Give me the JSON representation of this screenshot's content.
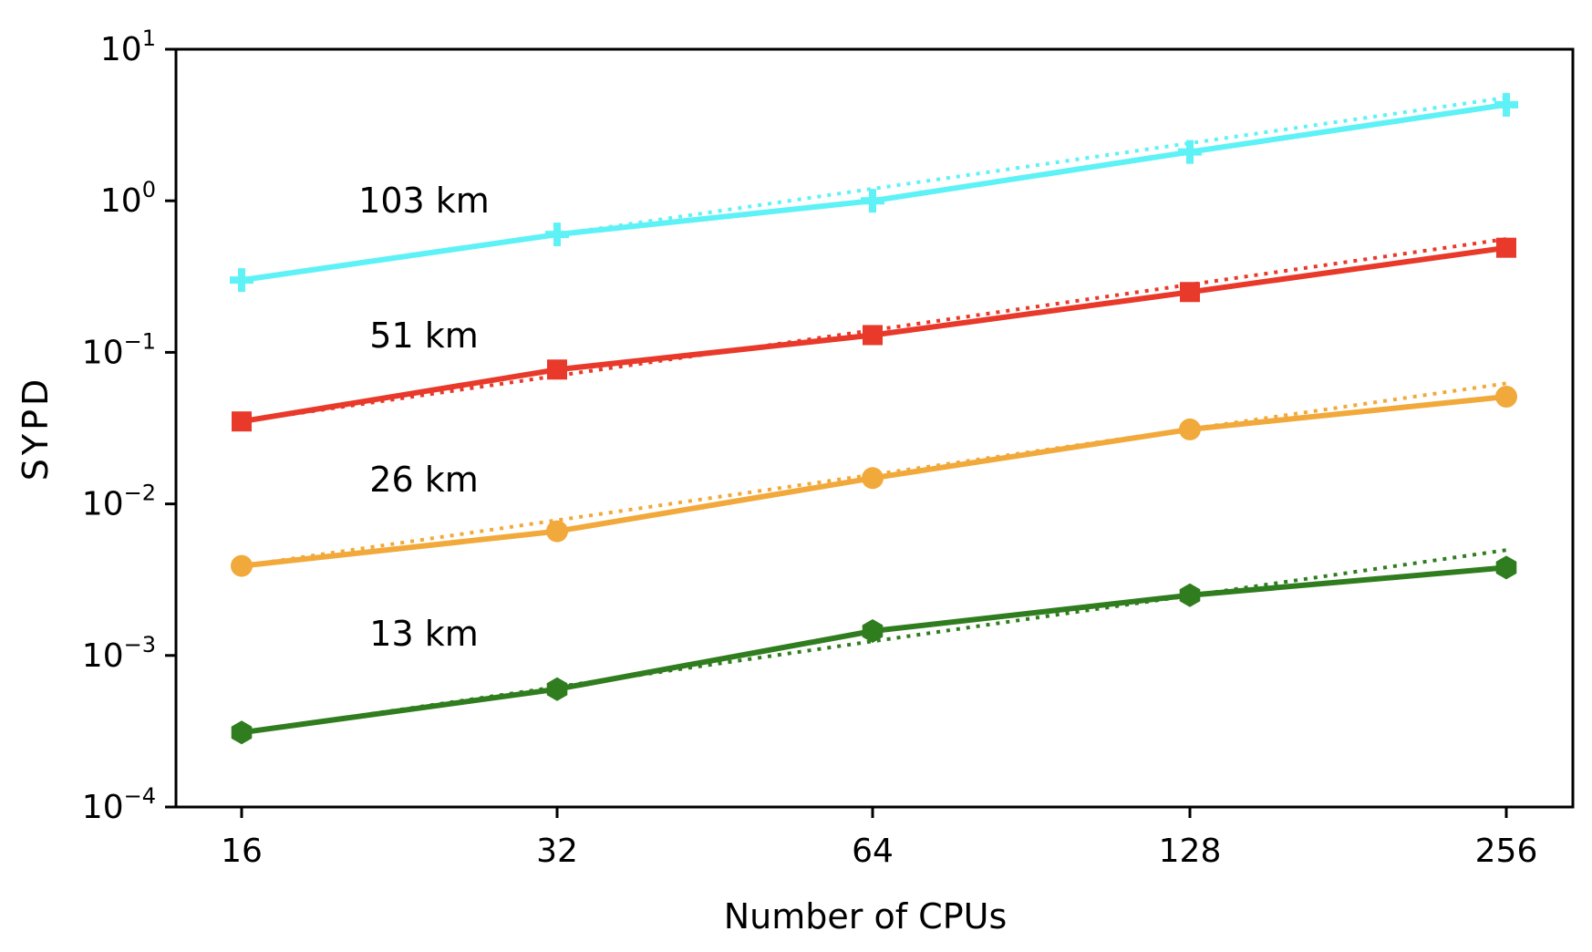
{
  "chart_data": {
    "type": "line",
    "xlabel": "Number of CPUs",
    "ylabel": "SYPD",
    "xscale": "log2",
    "yscale": "log10",
    "x": [
      16,
      32,
      64,
      128,
      256
    ],
    "x_tick_labels": [
      "16",
      "32",
      "64",
      "128",
      "256"
    ],
    "ylim": [
      0.0001,
      10
    ],
    "y_ticks": [
      {
        "base": "10",
        "exp": "1",
        "value": 10
      },
      {
        "base": "10",
        "exp": "0",
        "value": 1
      },
      {
        "base": "10",
        "exp": "−1",
        "value": 0.1
      },
      {
        "base": "10",
        "exp": "−2",
        "value": 0.01
      },
      {
        "base": "10",
        "exp": "−3",
        "value": 0.001
      },
      {
        "base": "10",
        "exp": "−4",
        "value": 0.0001
      }
    ],
    "grid": false,
    "series": [
      {
        "name": "103 km",
        "color": "#5ef2f7",
        "marker": "plus",
        "values": [
          0.3,
          0.6,
          1.0,
          2.1,
          4.3
        ],
        "reference": [
          0.3,
          0.6,
          1.2,
          2.4,
          4.8
        ]
      },
      {
        "name": "51 km",
        "color": "#e8392a",
        "marker": "square",
        "values": [
          0.035,
          0.077,
          0.13,
          0.25,
          0.49
        ],
        "reference": [
          0.035,
          0.07,
          0.14,
          0.28,
          0.56
        ]
      },
      {
        "name": "26 km",
        "color": "#f2a93b",
        "marker": "circle",
        "values": [
          0.0039,
          0.0066,
          0.0148,
          0.031,
          0.051
        ],
        "reference": [
          0.0039,
          0.0078,
          0.0156,
          0.0312,
          0.0624
        ]
      },
      {
        "name": "13 km",
        "color": "#2f7d1e",
        "marker": "hexagon",
        "values": [
          0.00031,
          0.0006,
          0.00145,
          0.0025,
          0.0038
        ],
        "reference": [
          0.00031,
          0.00062,
          0.00124,
          0.00248,
          0.00496
        ]
      }
    ]
  }
}
